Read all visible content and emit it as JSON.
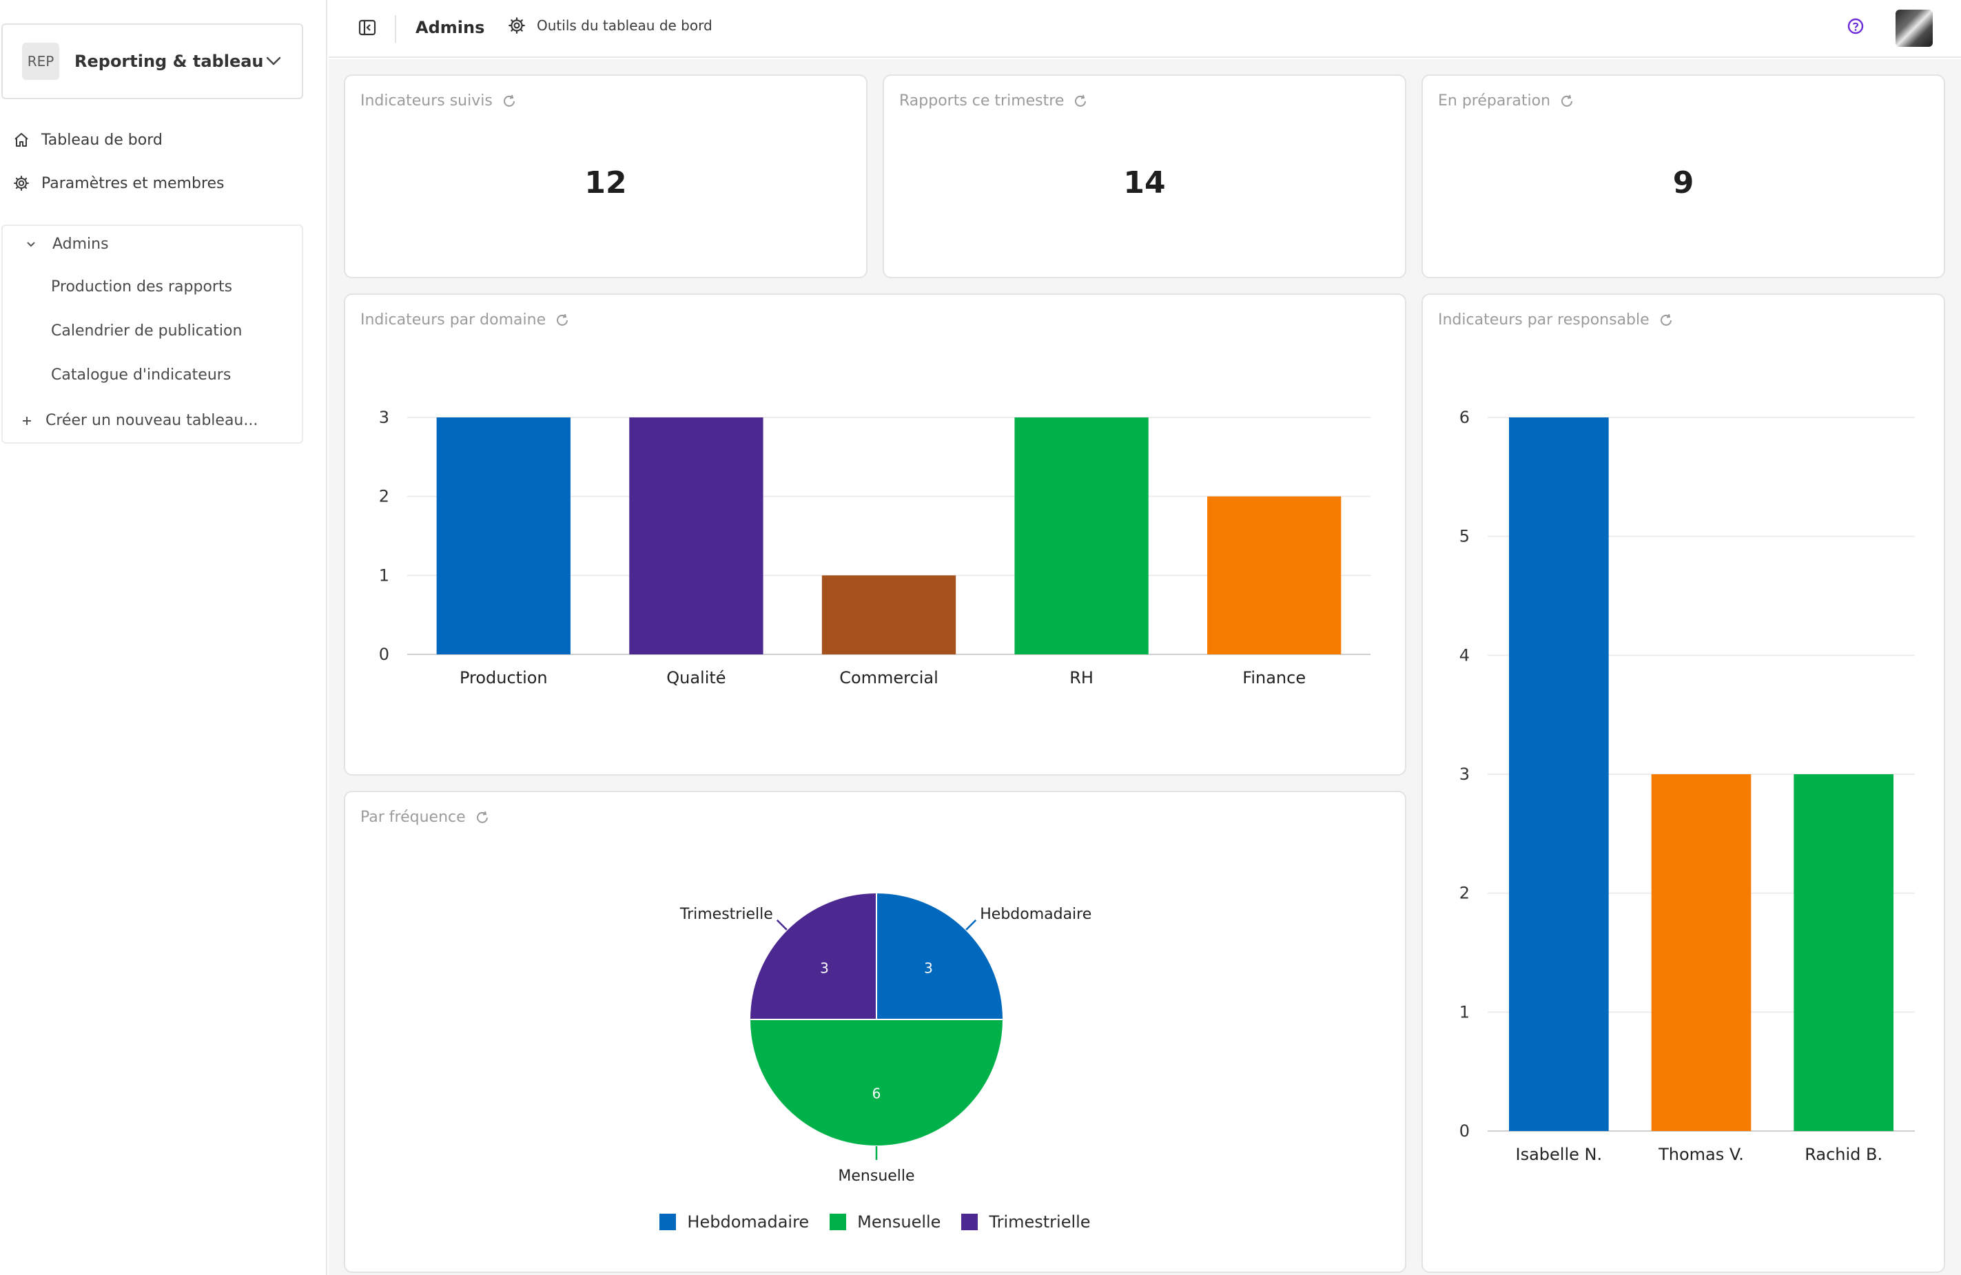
{
  "sidebar": {
    "workspace": {
      "badge": "REP",
      "name": "Reporting & tableau..."
    },
    "nav": [
      {
        "label": "Tableau de bord",
        "icon": "home-icon"
      },
      {
        "label": "Paramètres et membres",
        "icon": "gear-icon"
      }
    ],
    "tree": {
      "group_label": "Admins",
      "items": [
        "Production des rapports",
        "Calendrier de publication",
        "Catalogue d'indicateurs"
      ],
      "create_label": "Créer un nouveau tableau..."
    }
  },
  "topbar": {
    "breadcrumb": "Admins",
    "tools_label": "Outils du tableau de bord"
  },
  "colors": {
    "blue": "#0068bd",
    "purple": "#4b2991",
    "brown": "#a5511c",
    "green": "#00b14a",
    "orange": "#f57c00",
    "help": "#6a2bd9"
  },
  "kpis": [
    {
      "title": "Indicateurs suivis",
      "value": "12"
    },
    {
      "title": "Rapports ce trimestre",
      "value": "14"
    },
    {
      "title": "En préparation",
      "value": "9"
    }
  ],
  "panels": {
    "domain_title": "Indicateurs par domaine",
    "owner_title": "Indicateurs par responsable",
    "frequency_title": "Par fréquence"
  },
  "chart_data": [
    {
      "type": "bar",
      "title": "Indicateurs par domaine",
      "categories": [
        "Production",
        "Qualité",
        "Commercial",
        "RH",
        "Finance"
      ],
      "values": [
        3,
        3,
        1,
        3,
        2
      ],
      "colors": [
        "#0068bd",
        "#4b2991",
        "#a5511c",
        "#00b14a",
        "#f57c00"
      ],
      "ylim": [
        0,
        3
      ],
      "yticks": [
        0,
        1,
        2,
        3
      ],
      "grid": true
    },
    {
      "type": "bar",
      "title": "Indicateurs par responsable",
      "categories": [
        "Isabelle N.",
        "Thomas V.",
        "Rachid B."
      ],
      "values": [
        6,
        3,
        3
      ],
      "colors": [
        "#0068bd",
        "#f57c00",
        "#00b14a"
      ],
      "ylim": [
        0,
        6
      ],
      "yticks": [
        0,
        1,
        2,
        3,
        4,
        5,
        6
      ],
      "grid": true
    },
    {
      "type": "pie",
      "title": "Par fréquence",
      "categories": [
        "Hebdomadaire",
        "Mensuelle",
        "Trimestrielle"
      ],
      "values": [
        3,
        6,
        3
      ],
      "colors": [
        "#0068bd",
        "#00b14a",
        "#4b2991"
      ],
      "legend": "bottom"
    }
  ]
}
